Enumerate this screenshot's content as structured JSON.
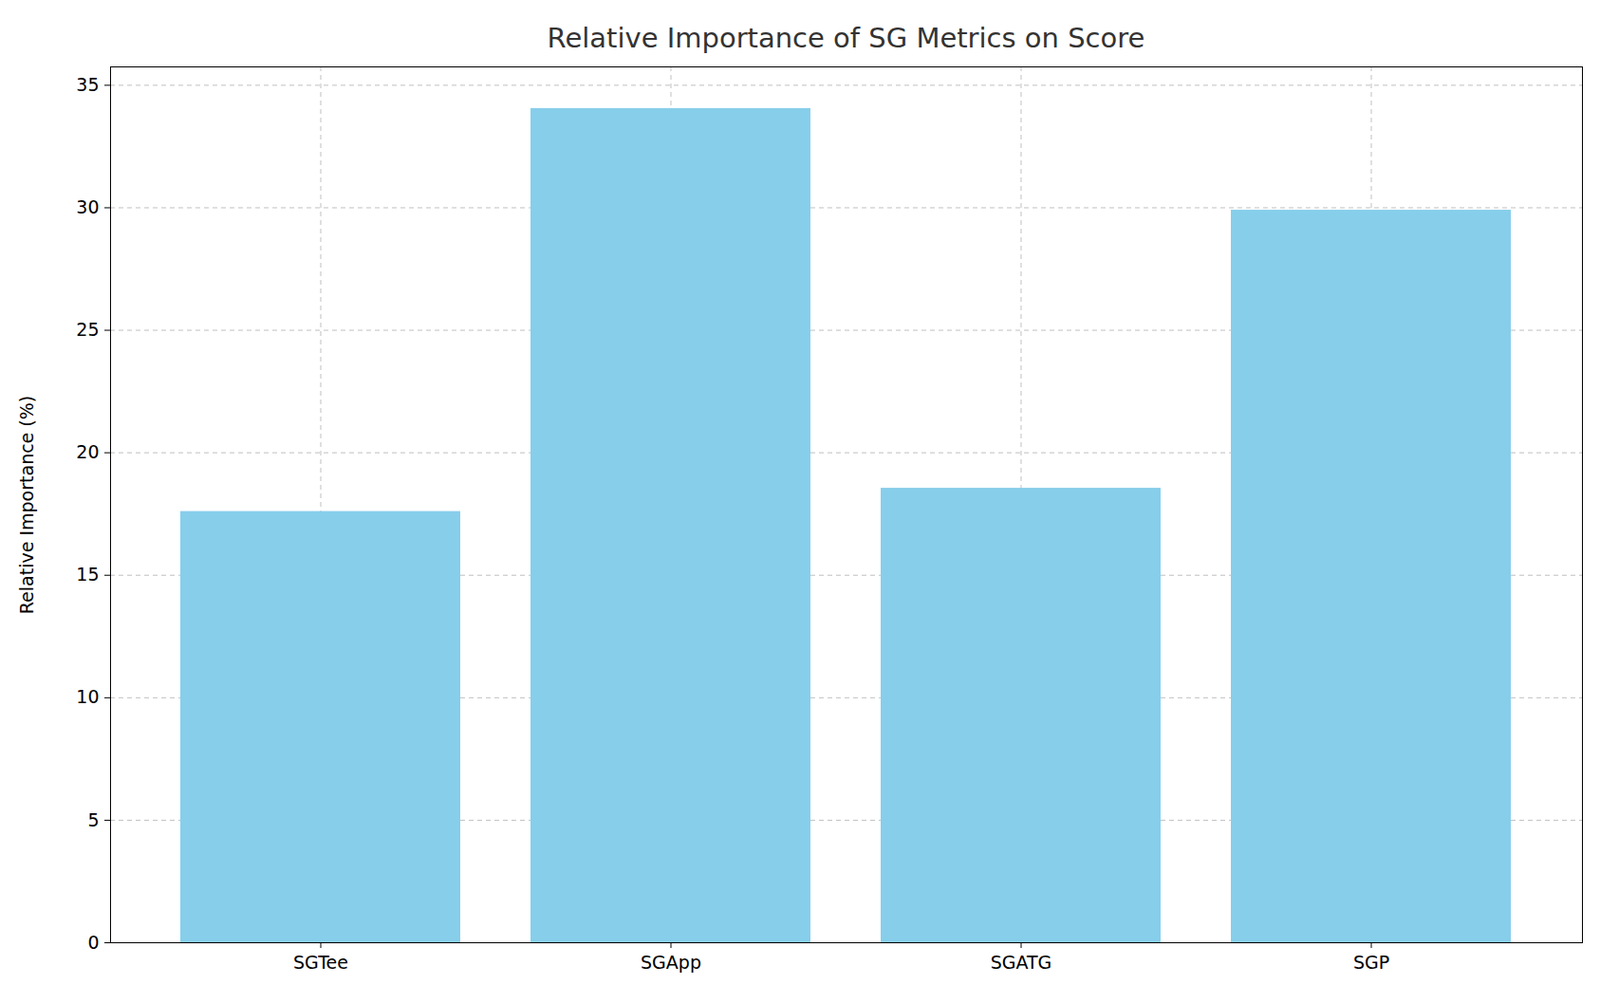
{
  "chart_data": {
    "type": "bar",
    "title": "Relative Importance of SG Metrics on Score",
    "y_label": "Relative Importance (%)",
    "categories": [
      "SGTee",
      "SGApp",
      "SGATG",
      "SGP"
    ],
    "values": [
      17.6,
      34.05,
      18.55,
      29.9
    ],
    "color": "#87ceeb",
    "ylim": [
      0,
      35.75
    ],
    "yticks": [
      0,
      5,
      10,
      15,
      20,
      25,
      30,
      35
    ],
    "grid": true
  }
}
